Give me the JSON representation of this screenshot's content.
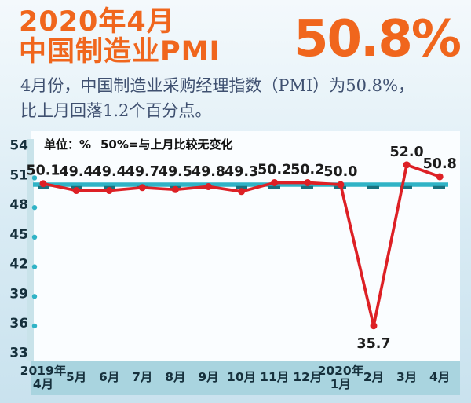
{
  "header": {
    "title_line1": "2020年4月",
    "title_line2": "中国制造业PMI",
    "big_value": "50.8%"
  },
  "subtitle": {
    "line1": "4月份，中国制造业采购经理指数（PMI）为50.8%，",
    "line2": "比上月回落1.2个百分点。"
  },
  "chart_data": {
    "type": "line",
    "note_unit": "单位：%",
    "note_reference": "50%=与上月比较无变化",
    "categories": [
      "2019年|4月",
      "5月",
      "6月",
      "7月",
      "8月",
      "9月",
      "10月",
      "11月",
      "12月",
      "2020年|1月",
      "2月",
      "3月",
      "4月"
    ],
    "values": [
      50.1,
      49.4,
      49.4,
      49.7,
      49.5,
      49.8,
      49.3,
      50.2,
      50.2,
      50.0,
      35.7,
      52.0,
      50.8
    ],
    "yticks": [
      54,
      51,
      48,
      45,
      42,
      39,
      36,
      33
    ],
    "ylim": [
      33,
      54
    ],
    "reference_value": 50,
    "grid": false,
    "legend_position": "none"
  },
  "colors": {
    "accent_orange": "#f0661d",
    "subtitle_text": "#3f5070",
    "line_red": "#dd2025",
    "reference_cyan": "#30b3c6",
    "reference_dash_dark": "#19717f",
    "axis_band_teal": "#a9d4df",
    "yaxis_band": "#c9e3ea",
    "plot_bg": "#fafdff",
    "tick_text": "#16303c",
    "label_text": "#1c1c1c"
  }
}
